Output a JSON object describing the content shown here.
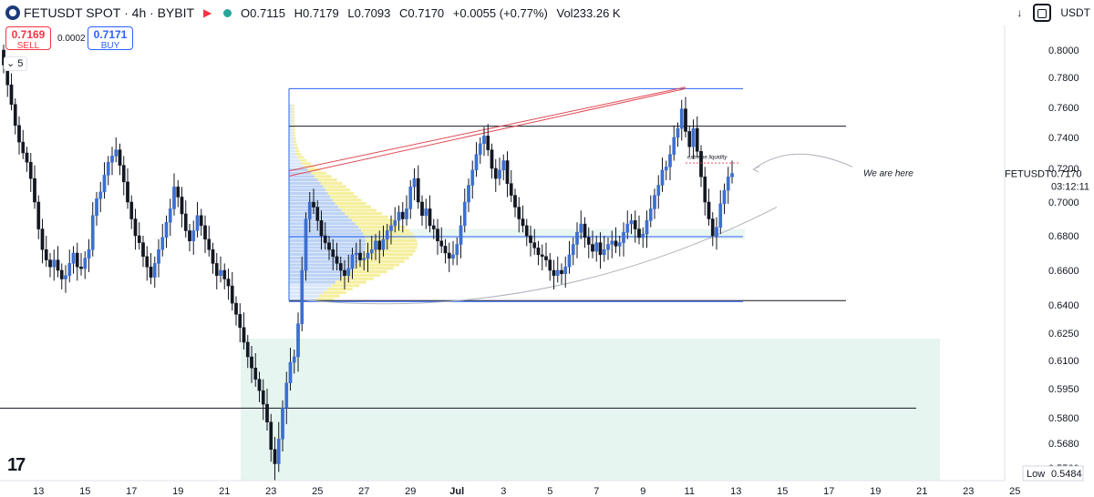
{
  "header": {
    "symbol": "FETUSDT SPOT",
    "interval": "4h",
    "exchange": "BYBIT",
    "open_label": "O",
    "open": "0.7115",
    "high_label": "H",
    "high": "0.7179",
    "low_label": "L",
    "low": "0.7093",
    "close_label": "C",
    "close": "0.7170",
    "change": "+0.0055 (+0.77%)",
    "volume_label": "Vol",
    "volume": "233.26 K"
  },
  "trade": {
    "sell_price": "0.7169",
    "sell_label": "SELL",
    "spread": "0.0002",
    "buy_price": "0.7171",
    "buy_label": "BUY"
  },
  "collapse_label": "5",
  "toolbar": {
    "currency": "USDT"
  },
  "brand_text": "17",
  "colors": {
    "up": "#3d6fd1",
    "down": "#131722",
    "accent": "#2962ff",
    "zone": "#e6f5f0",
    "profile": "#f5ef9e",
    "profile_va": "#bcd2f5",
    "trend": "#e04a55"
  },
  "chart_data": {
    "type": "candlestick",
    "ylim": [
      0.5484,
      0.814
    ],
    "y_ticks": [
      "0.8000",
      "0.7800",
      "0.7600",
      "0.7400",
      "0.7200",
      "0.7000",
      "0.6800",
      "0.6600",
      "0.6400",
      "0.6250",
      "0.6100",
      "0.5950",
      "0.5800",
      "0.5680",
      "0.5560"
    ],
    "x_ticks": [
      "13",
      "15",
      "17",
      "19",
      "21",
      "23",
      "25",
      "27",
      "29",
      "Jul",
      "3",
      "5",
      "7",
      "9",
      "11",
      "13",
      "15",
      "17",
      "19",
      "21",
      "23",
      "25"
    ],
    "x_range": [
      0,
      260
    ],
    "x_tick_positions": [
      9,
      21,
      33,
      45,
      57,
      69,
      81,
      93,
      105,
      117,
      129,
      141,
      153,
      165,
      177,
      189,
      201,
      213,
      225,
      237,
      249,
      261
    ],
    "last_price": {
      "label": "FETUSDT",
      "value": "0.7170",
      "countdown": "03:12:11"
    },
    "low_marker": {
      "label": "Low",
      "value": "0.5484"
    },
    "annotations": [
      {
        "text": "We are here"
      },
      {
        "text": "extreme liquidity"
      }
    ],
    "candles_close": [
      0.789,
      0.775,
      0.762,
      0.748,
      0.737,
      0.73,
      0.724,
      0.714,
      0.7,
      0.684,
      0.672,
      0.666,
      0.662,
      0.666,
      0.66,
      0.655,
      0.657,
      0.664,
      0.67,
      0.662,
      0.661,
      0.667,
      0.672,
      0.692,
      0.702,
      0.706,
      0.716,
      0.724,
      0.728,
      0.732,
      0.722,
      0.712,
      0.7,
      0.69,
      0.68,
      0.676,
      0.668,
      0.662,
      0.656,
      0.664,
      0.672,
      0.679,
      0.688,
      0.696,
      0.709,
      0.703,
      0.693,
      0.683,
      0.677,
      0.683,
      0.692,
      0.686,
      0.678,
      0.672,
      0.664,
      0.657,
      0.66,
      0.655,
      0.651,
      0.641,
      0.635,
      0.628,
      0.62,
      0.612,
      0.606,
      0.6,
      0.594,
      0.587,
      0.578,
      0.565,
      0.558,
      0.57,
      0.585,
      0.598,
      0.609,
      0.612,
      0.63,
      0.66,
      0.69,
      0.7,
      0.697,
      0.689,
      0.68,
      0.676,
      0.672,
      0.668,
      0.664,
      0.66,
      0.657,
      0.661,
      0.669,
      0.67,
      0.666,
      0.667,
      0.67,
      0.672,
      0.677,
      0.672,
      0.678,
      0.683,
      0.686,
      0.689,
      0.694,
      0.69,
      0.696,
      0.709,
      0.714,
      0.7,
      0.692,
      0.696,
      0.686,
      0.684,
      0.677,
      0.674,
      0.67,
      0.667,
      0.669,
      0.675,
      0.686,
      0.7,
      0.71,
      0.719,
      0.729,
      0.736,
      0.741,
      0.732,
      0.72,
      0.714,
      0.719,
      0.725,
      0.711,
      0.704,
      0.697,
      0.69,
      0.686,
      0.68,
      0.676,
      0.673,
      0.669,
      0.668,
      0.666,
      0.66,
      0.657,
      0.66,
      0.658,
      0.662,
      0.669,
      0.675,
      0.682,
      0.687,
      0.679,
      0.675,
      0.671,
      0.676,
      0.669,
      0.672,
      0.675,
      0.677,
      0.674,
      0.676,
      0.682,
      0.687,
      0.689,
      0.684,
      0.679,
      0.681,
      0.689,
      0.696,
      0.704,
      0.71,
      0.719,
      0.721,
      0.729,
      0.74,
      0.746,
      0.759,
      0.744,
      0.734,
      0.746,
      0.731,
      0.715,
      0.7,
      0.69,
      0.68,
      0.685,
      0.699,
      0.707,
      0.715,
      0.717
    ]
  }
}
